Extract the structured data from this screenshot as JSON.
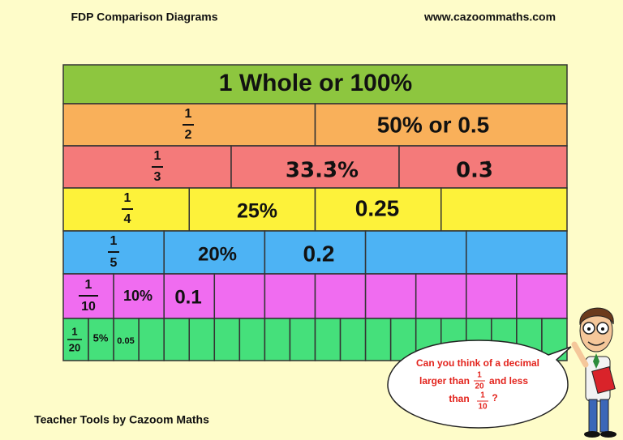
{
  "header": {
    "title": "FDP Comparison Diagrams",
    "website": "www.cazoommaths.com"
  },
  "rows": [
    {
      "label": "1 Whole   or   100%"
    },
    {
      "fraction": {
        "numerator": "1",
        "denominator": "2"
      },
      "labels": [
        "50%  or  0.5"
      ]
    },
    {
      "fraction": {
        "numerator": "1",
        "denominator": "3"
      },
      "labels": [
        "33.3̇%",
        "0.3̇"
      ]
    },
    {
      "fraction": {
        "numerator": "1",
        "denominator": "4"
      },
      "labels": [
        "25%",
        "0.25"
      ]
    },
    {
      "fraction": {
        "numerator": "1",
        "denominator": "5"
      },
      "labels": [
        "20%",
        "0.2"
      ]
    },
    {
      "fraction": {
        "numerator": "1",
        "denominator": "10"
      },
      "labels": [
        "10%",
        "0.1"
      ]
    },
    {
      "fraction": {
        "numerator": "1",
        "denominator": "20"
      },
      "labels": [
        "5%",
        "0.05"
      ]
    }
  ],
  "speech_bubble": {
    "line1": "Can you think of a decimal",
    "line2_start": "larger than",
    "fraction1": {
      "numerator": "1",
      "denominator": "20"
    },
    "line2_end": "and less",
    "line3_start": "than",
    "fraction2": {
      "numerator": "1",
      "denominator": "10"
    },
    "line3_end": "?"
  },
  "footer": "Teacher Tools by Cazoom Maths"
}
